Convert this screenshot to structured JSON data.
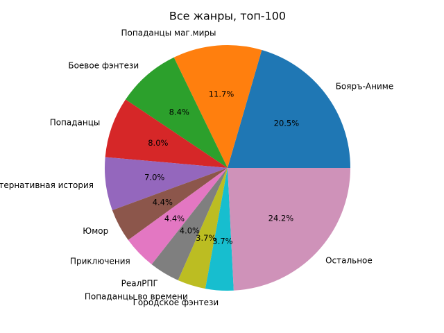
{
  "chart_data": {
    "type": "pie",
    "title": "Все жанры, топ-100",
    "categories": [
      "Бояръ-Аниме",
      "Попаданцы маг.миры",
      "Боевое фэнтези",
      "Попаданцы",
      "Альтернативная история",
      "Юмор",
      "Приключения",
      "РеалРПГ",
      "Попаданцы во времени",
      "Городское фэнтези",
      "Остальное"
    ],
    "values": [
      20.5,
      11.7,
      8.4,
      8.0,
      7.0,
      4.4,
      4.4,
      4.0,
      3.7,
      3.7,
      24.2
    ],
    "value_labels": [
      "20.5%",
      "11.7%",
      "8.4%",
      "8.0%",
      "7.0%",
      "4.4%",
      "4.4%",
      "4.0%",
      "3.7%",
      "3.7%",
      "24.2%"
    ],
    "colors": [
      "#1f77b4",
      "#ff7f0e",
      "#2ca02c",
      "#d62728",
      "#9467bd",
      "#8c564b",
      "#e377c2",
      "#7f7f7f",
      "#bcbd22",
      "#17becf",
      "#cf92b9"
    ]
  }
}
